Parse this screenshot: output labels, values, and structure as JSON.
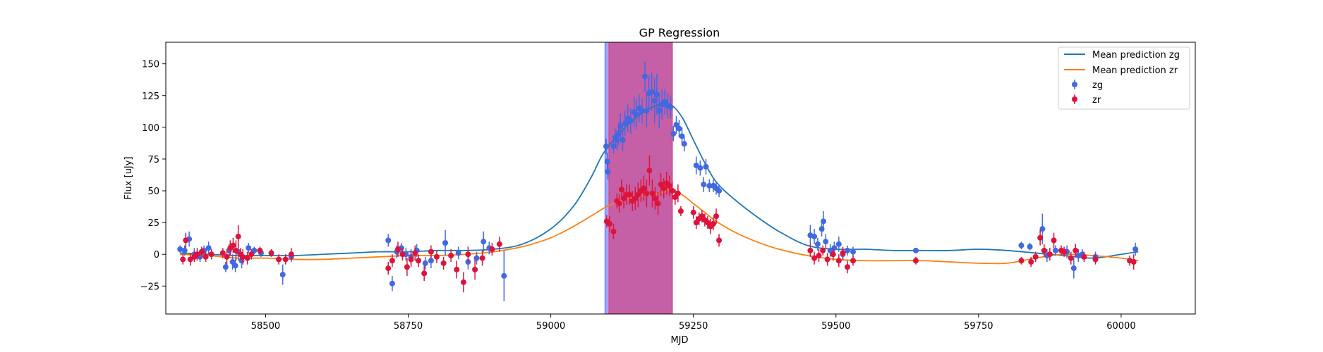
{
  "colors": {
    "zg_point": "#4169e1",
    "zr_point": "#dc143c",
    "zg_line": "#1f77b4",
    "zr_line": "#ff7f0e",
    "band_zg": "#4f5fff",
    "band_zr": "#e0306a"
  },
  "chart_data": {
    "type": "scatter",
    "title": "GP Regression",
    "xlabel": "MJD",
    "ylabel": "Flux [uJy]",
    "xlim": [
      58325,
      60130
    ],
    "ylim": [
      -47,
      167
    ],
    "xticks": [
      58500,
      58750,
      59000,
      59250,
      59500,
      59750,
      60000
    ],
    "yticks": [
      -25,
      0,
      25,
      50,
      75,
      100,
      125,
      150
    ],
    "legend_position": "top-right",
    "shaded_bands": [
      {
        "band": "zg",
        "x0": 59095,
        "x1": 59213
      },
      {
        "band": "zr",
        "x0": 59102,
        "x1": 59213
      }
    ],
    "lines": [
      {
        "name": "Mean prediction zg",
        "color_key": "zg_line",
        "x": [
          58350,
          58400,
          58450,
          58500,
          58550,
          58600,
          58650,
          58700,
          58750,
          58800,
          58850,
          58900,
          58950,
          59000,
          59040,
          59070,
          59090,
          59110,
          59130,
          59150,
          59170,
          59190,
          59210,
          59230,
          59250,
          59270,
          59290,
          59320,
          59360,
          59400,
          59450,
          59500,
          59550,
          59600,
          59650,
          59700,
          59750,
          59800,
          59850,
          59900,
          59950,
          60000,
          60030
        ],
        "y": [
          1,
          0,
          -1,
          -1,
          -1,
          0,
          1,
          2,
          2,
          3,
          3,
          4,
          8,
          20,
          38,
          60,
          78,
          90,
          100,
          108,
          114,
          118,
          118,
          108,
          90,
          72,
          57,
          44,
          30,
          18,
          7,
          4,
          4,
          3,
          3,
          3,
          4,
          3,
          1,
          -1,
          -3,
          0,
          2
        ]
      },
      {
        "name": "Mean prediction zr",
        "color_key": "zr_line",
        "x": [
          58350,
          58400,
          58450,
          58500,
          58550,
          58600,
          58650,
          58700,
          58750,
          58800,
          58850,
          58900,
          58950,
          59000,
          59040,
          59070,
          59100,
          59130,
          59160,
          59190,
          59210,
          59230,
          59250,
          59270,
          59290,
          59320,
          59360,
          59400,
          59450,
          59500,
          59550,
          59600,
          59650,
          59700,
          59750,
          59800,
          59850,
          59900,
          59950,
          60000,
          60030
        ],
        "y": [
          0,
          -1,
          -3,
          -3,
          -4,
          -4,
          -3,
          -2,
          -1,
          -1,
          0,
          2,
          6,
          13,
          22,
          30,
          38,
          43,
          46,
          48,
          51,
          47,
          40,
          33,
          26,
          18,
          10,
          4,
          -1,
          -4,
          -5,
          -5,
          -5,
          -6,
          -7,
          -7,
          -3,
          0,
          -1,
          -3,
          -5
        ]
      }
    ],
    "series": [
      {
        "name": "zg",
        "color_key": "zg_point",
        "points": [
          [
            58350,
            4,
            3
          ],
          [
            58358,
            3,
            4
          ],
          [
            58366,
            12,
            6
          ],
          [
            58375,
            0,
            5
          ],
          [
            58385,
            -2,
            4
          ],
          [
            58392,
            3,
            4
          ],
          [
            58400,
            5,
            5
          ],
          [
            58430,
            -10,
            4
          ],
          [
            58436,
            3,
            5
          ],
          [
            58442,
            -6,
            6
          ],
          [
            58447,
            -9,
            5
          ],
          [
            58452,
            2,
            7
          ],
          [
            58458,
            -5,
            6
          ],
          [
            58470,
            5,
            4
          ],
          [
            58480,
            3,
            3
          ],
          [
            58492,
            1,
            3
          ],
          [
            58530,
            -16,
            8
          ],
          [
            58545,
            -2,
            4
          ],
          [
            58715,
            11,
            5
          ],
          [
            58722,
            -23,
            6
          ],
          [
            58730,
            2,
            5
          ],
          [
            58738,
            5,
            4
          ],
          [
            58746,
            0,
            5
          ],
          [
            58755,
            -2,
            6
          ],
          [
            58765,
            3,
            5
          ],
          [
            58780,
            -7,
            5
          ],
          [
            58790,
            -5,
            6
          ],
          [
            58815,
            9,
            10
          ],
          [
            58838,
            1,
            5
          ],
          [
            58855,
            -6,
            6
          ],
          [
            58870,
            -3,
            5
          ],
          [
            58882,
            10,
            8
          ],
          [
            58892,
            5,
            5
          ],
          [
            58918,
            -17,
            20
          ],
          [
            59097,
            85,
            6
          ],
          [
            59099,
            73,
            7
          ],
          [
            59100,
            65,
            6
          ],
          [
            59110,
            85,
            6
          ],
          [
            59113,
            92,
            7
          ],
          [
            59116,
            90,
            8
          ],
          [
            59119,
            95,
            9
          ],
          [
            59122,
            101,
            10
          ],
          [
            59126,
            90,
            9
          ],
          [
            59130,
            103,
            10
          ],
          [
            59135,
            107,
            11
          ],
          [
            59140,
            105,
            10
          ],
          [
            59146,
            112,
            12
          ],
          [
            59150,
            110,
            12
          ],
          [
            59155,
            115,
            11
          ],
          [
            59160,
            113,
            10
          ],
          [
            59165,
            140,
            12
          ],
          [
            59168,
            113,
            13
          ],
          [
            59172,
            127,
            14
          ],
          [
            59177,
            128,
            15
          ],
          [
            59182,
            121,
            18
          ],
          [
            59186,
            126,
            16
          ],
          [
            59190,
            113,
            14
          ],
          [
            59195,
            118,
            12
          ],
          [
            59200,
            120,
            10
          ],
          [
            59205,
            117,
            10
          ],
          [
            59210,
            116,
            9
          ],
          [
            59215,
            95,
            6
          ],
          [
            59220,
            102,
            7
          ],
          [
            59225,
            99,
            7
          ],
          [
            59230,
            93,
            7
          ],
          [
            59234,
            87,
            6
          ],
          [
            59255,
            70,
            7
          ],
          [
            59262,
            68,
            6
          ],
          [
            59268,
            55,
            6
          ],
          [
            59272,
            69,
            6
          ],
          [
            59278,
            54,
            5
          ],
          [
            59285,
            54,
            5
          ],
          [
            59290,
            52,
            5
          ],
          [
            59295,
            50,
            5
          ],
          [
            59455,
            15,
            8
          ],
          [
            59462,
            14,
            6
          ],
          [
            59468,
            8,
            5
          ],
          [
            59475,
            20,
            6
          ],
          [
            59478,
            26,
            8
          ],
          [
            59482,
            10,
            6
          ],
          [
            59490,
            3,
            5
          ],
          [
            59497,
            5,
            5
          ],
          [
            59505,
            8,
            6
          ],
          [
            59512,
            0,
            5
          ],
          [
            59520,
            3,
            4
          ],
          [
            59530,
            2,
            4
          ],
          [
            59640,
            3,
            2
          ],
          [
            59825,
            7,
            3
          ],
          [
            59840,
            6,
            3
          ],
          [
            59862,
            20,
            12
          ],
          [
            59870,
            -1,
            5
          ],
          [
            59885,
            3,
            4
          ],
          [
            59905,
            2,
            5
          ],
          [
            59917,
            -11,
            8
          ],
          [
            59925,
            -1,
            5
          ],
          [
            59932,
            0,
            4
          ],
          [
            59955,
            -2,
            4
          ],
          [
            60025,
            4,
            5
          ]
        ]
      },
      {
        "name": "zr",
        "color_key": "zr_point",
        "points": [
          [
            58355,
            -4,
            4
          ],
          [
            58360,
            11,
            6
          ],
          [
            58368,
            -4,
            5
          ],
          [
            58375,
            -2,
            4
          ],
          [
            58380,
            0,
            5
          ],
          [
            58388,
            2,
            4
          ],
          [
            58395,
            -2,
            4
          ],
          [
            58405,
            0,
            4
          ],
          [
            58425,
            1,
            4
          ],
          [
            58432,
            -2,
            6
          ],
          [
            58438,
            5,
            6
          ],
          [
            58443,
            7,
            6
          ],
          [
            58448,
            3,
            8
          ],
          [
            58452,
            14,
            9
          ],
          [
            58456,
            0,
            5
          ],
          [
            58460,
            -2,
            6
          ],
          [
            58468,
            -3,
            5
          ],
          [
            58475,
            0,
            4
          ],
          [
            58490,
            3,
            3
          ],
          [
            58510,
            1,
            3
          ],
          [
            58523,
            -4,
            4
          ],
          [
            58535,
            -4,
            4
          ],
          [
            58545,
            0,
            5
          ],
          [
            58715,
            -11,
            5
          ],
          [
            58722,
            -5,
            5
          ],
          [
            58732,
            4,
            6
          ],
          [
            58740,
            0,
            5
          ],
          [
            58748,
            -10,
            7
          ],
          [
            58755,
            -4,
            6
          ],
          [
            58762,
            1,
            6
          ],
          [
            58768,
            -5,
            5
          ],
          [
            58778,
            -15,
            6
          ],
          [
            58790,
            2,
            5
          ],
          [
            58800,
            -2,
            5
          ],
          [
            58812,
            -7,
            5
          ],
          [
            58825,
            -1,
            5
          ],
          [
            58835,
            -12,
            7
          ],
          [
            58847,
            -22,
            8
          ],
          [
            58855,
            0,
            6
          ],
          [
            58867,
            -12,
            8
          ],
          [
            58880,
            -3,
            6
          ],
          [
            58897,
            4,
            5
          ],
          [
            58910,
            8,
            6
          ],
          [
            59098,
            26,
            5
          ],
          [
            59103,
            24,
            6
          ],
          [
            59110,
            18,
            6
          ],
          [
            59116,
            42,
            6
          ],
          [
            59120,
            40,
            7
          ],
          [
            59124,
            51,
            8
          ],
          [
            59128,
            44,
            8
          ],
          [
            59133,
            47,
            8
          ],
          [
            59138,
            47,
            8
          ],
          [
            59143,
            42,
            8
          ],
          [
            59148,
            44,
            9
          ],
          [
            59153,
            47,
            10
          ],
          [
            59158,
            50,
            9
          ],
          [
            59163,
            52,
            10
          ],
          [
            59168,
            48,
            11
          ],
          [
            59173,
            66,
            12
          ],
          [
            59178,
            48,
            11
          ],
          [
            59183,
            44,
            9
          ],
          [
            59188,
            40,
            9
          ],
          [
            59193,
            55,
            9
          ],
          [
            59198,
            52,
            8
          ],
          [
            59203,
            56,
            9
          ],
          [
            59208,
            54,
            8
          ],
          [
            59213,
            50,
            7
          ],
          [
            59218,
            45,
            6
          ],
          [
            59223,
            48,
            7
          ],
          [
            59228,
            34,
            4
          ],
          [
            59250,
            33,
            5
          ],
          [
            59255,
            25,
            5
          ],
          [
            59260,
            28,
            5
          ],
          [
            59265,
            30,
            5
          ],
          [
            59270,
            27,
            5
          ],
          [
            59275,
            25,
            5
          ],
          [
            59280,
            22,
            6
          ],
          [
            59285,
            24,
            5
          ],
          [
            59290,
            30,
            6
          ],
          [
            59295,
            11,
            5
          ],
          [
            59455,
            3,
            5
          ],
          [
            59462,
            -3,
            5
          ],
          [
            59470,
            -1,
            5
          ],
          [
            59477,
            3,
            4
          ],
          [
            59485,
            -4,
            5
          ],
          [
            59495,
            0,
            5
          ],
          [
            59505,
            -5,
            5
          ],
          [
            59512,
            1,
            5
          ],
          [
            59520,
            -10,
            5
          ],
          [
            59530,
            -5,
            4
          ],
          [
            59640,
            -5,
            3
          ],
          [
            59825,
            -5,
            3
          ],
          [
            59842,
            -6,
            4
          ],
          [
            59850,
            -2,
            4
          ],
          [
            59858,
            13,
            6
          ],
          [
            59865,
            3,
            5
          ],
          [
            59875,
            0,
            5
          ],
          [
            59882,
            11,
            6
          ],
          [
            59895,
            3,
            4
          ],
          [
            59900,
            2,
            4
          ],
          [
            59912,
            -3,
            5
          ],
          [
            59920,
            3,
            5
          ],
          [
            59935,
            -2,
            4
          ],
          [
            59955,
            -4,
            4
          ],
          [
            60015,
            -5,
            4
          ],
          [
            60022,
            -6,
            6
          ]
        ]
      }
    ]
  }
}
